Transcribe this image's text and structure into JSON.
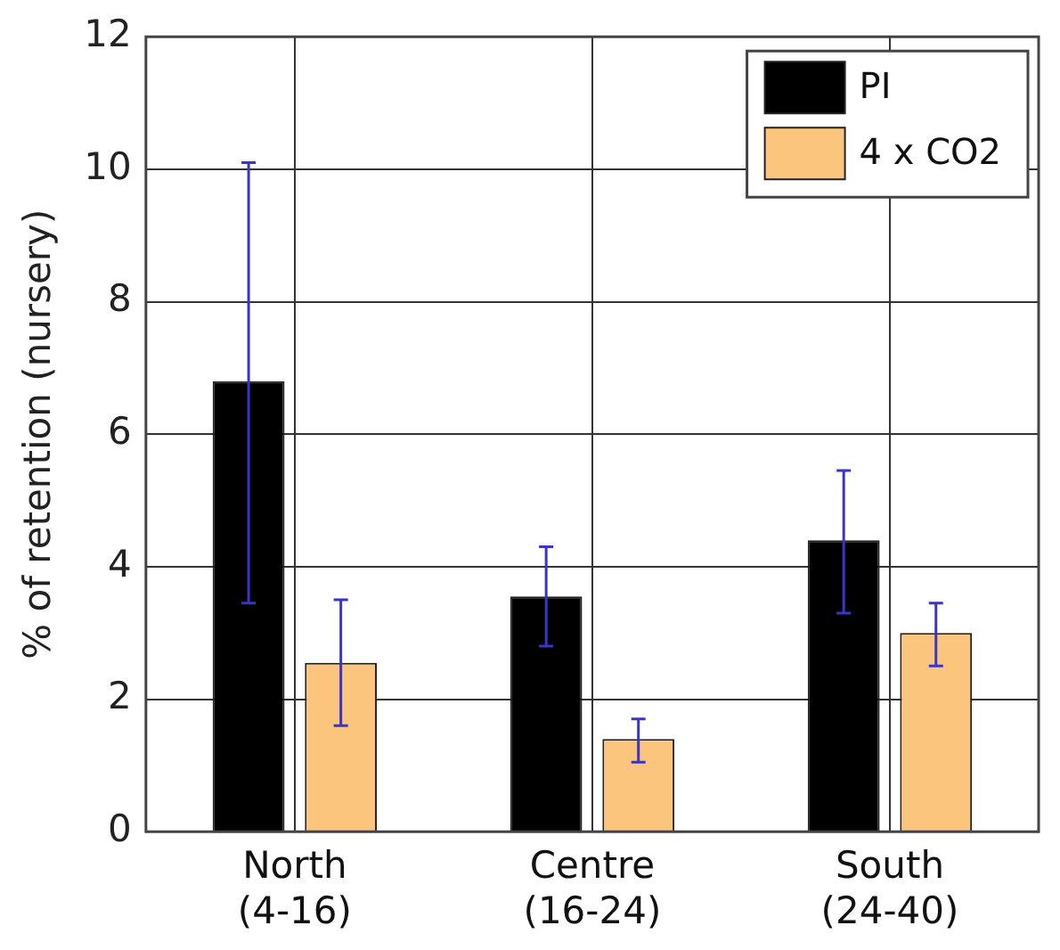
{
  "chart_data": {
    "type": "bar",
    "ylabel": "% of retention (nursery)",
    "categories": [
      "North\n(4-16)",
      "Centre\n(16-24)",
      "South\n(24-40)"
    ],
    "series": [
      {
        "name": "PI",
        "color": "#000000",
        "values": [
          6.8,
          3.55,
          4.4
        ],
        "errors": [
          [
            3.45,
            10.1
          ],
          [
            2.8,
            4.3
          ],
          [
            3.3,
            5.45
          ]
        ]
      },
      {
        "name": "4 x CO2",
        "color": "#fbc57e",
        "values": [
          2.55,
          1.4,
          3.0
        ],
        "errors": [
          [
            1.6,
            3.5
          ],
          [
            1.05,
            1.7
          ],
          [
            2.5,
            3.45
          ]
        ]
      }
    ],
    "ylim": [
      0,
      12
    ],
    "yticks": [
      0,
      2,
      4,
      6,
      8,
      10,
      12
    ],
    "grid": true,
    "legend": "top right"
  }
}
